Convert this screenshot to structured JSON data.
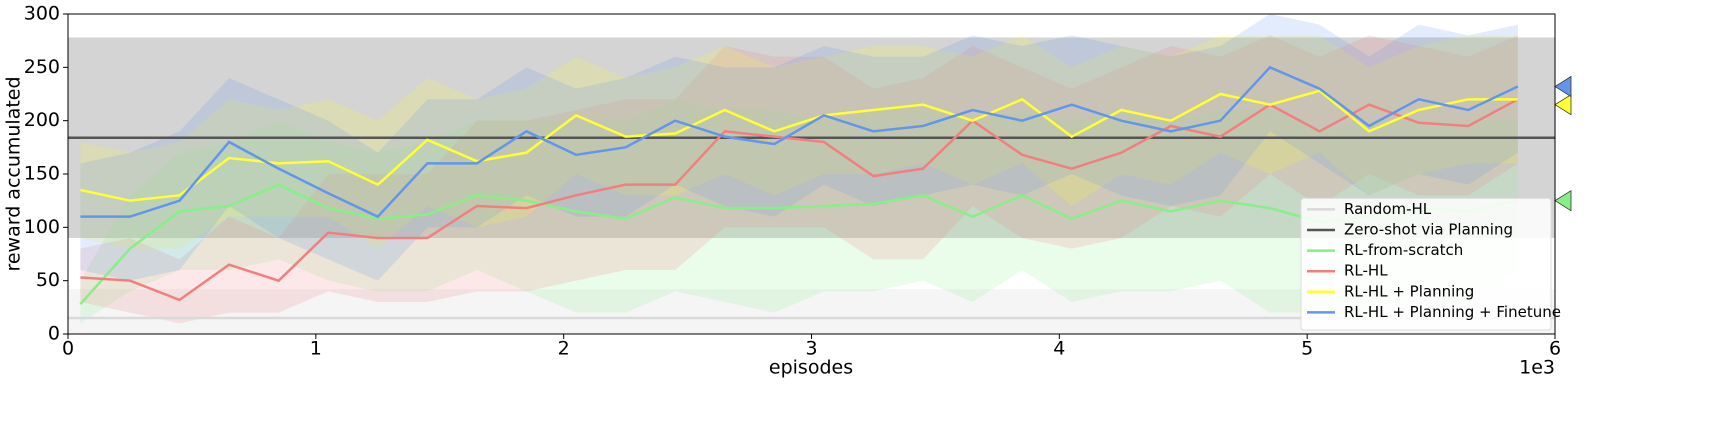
{
  "chart_data": {
    "type": "line",
    "xlabel": "episodes",
    "ylabel": "reward accumulated",
    "x_offset_label": "1e3",
    "xlim": [
      0,
      6
    ],
    "xticks": [
      0,
      1,
      2,
      3,
      4,
      5,
      6
    ],
    "ylim": [
      0,
      300
    ],
    "yticks": [
      0,
      50,
      100,
      150,
      200,
      250,
      300
    ],
    "legend": "lower right",
    "x": [
      0.05,
      0.25,
      0.45,
      0.65,
      0.85,
      1.05,
      1.25,
      1.45,
      1.65,
      1.85,
      2.05,
      2.25,
      2.45,
      2.65,
      2.85,
      3.05,
      3.25,
      3.45,
      3.65,
      3.85,
      4.05,
      4.25,
      4.45,
      4.65,
      4.85,
      5.05,
      5.25,
      5.45,
      5.65,
      5.85
    ],
    "reference_lines": [
      {
        "name": "Random-HL",
        "color": "#d9d9d9",
        "value": 15,
        "lower": 0,
        "upper": 42
      },
      {
        "name": "Zero-shot via Planning",
        "color": "#555555",
        "value": 184,
        "lower": 90,
        "upper": 278
      }
    ],
    "series": [
      {
        "name": "RL-from-scratch",
        "color": "#88ee88",
        "marker": 125,
        "values": [
          28,
          80,
          115,
          120,
          140,
          118,
          108,
          112,
          130,
          125,
          115,
          108,
          128,
          118,
          118,
          120,
          122,
          130,
          110,
          130,
          108,
          125,
          115,
          125,
          118,
          105,
          110,
          118,
          115,
          125
        ],
        "lower": [
          10,
          40,
          60,
          60,
          70,
          50,
          40,
          40,
          60,
          40,
          20,
          20,
          40,
          30,
          20,
          40,
          40,
          50,
          30,
          60,
          30,
          40,
          40,
          50,
          20,
          20,
          20,
          40,
          30,
          60
        ],
        "upper": [
          50,
          130,
          170,
          180,
          200,
          180,
          170,
          180,
          200,
          200,
          200,
          200,
          220,
          210,
          210,
          200,
          210,
          210,
          200,
          210,
          200,
          210,
          200,
          210,
          210,
          190,
          200,
          200,
          200,
          200
        ]
      },
      {
        "name": "RL-HL",
        "color": "#f08080",
        "values": [
          53,
          50,
          32,
          65,
          50,
          95,
          90,
          90,
          120,
          118,
          130,
          140,
          140,
          190,
          185,
          180,
          148,
          155,
          200,
          168,
          155,
          170,
          195,
          185,
          215,
          190,
          215,
          198,
          195,
          220
        ],
        "lower": [
          30,
          20,
          10,
          20,
          20,
          40,
          30,
          30,
          40,
          40,
          50,
          60,
          60,
          100,
          100,
          100,
          70,
          70,
          120,
          90,
          80,
          90,
          120,
          110,
          150,
          120,
          150,
          130,
          130,
          160
        ],
        "upper": [
          80,
          90,
          70,
          110,
          90,
          150,
          150,
          150,
          200,
          200,
          210,
          220,
          220,
          270,
          260,
          260,
          230,
          240,
          270,
          250,
          230,
          250,
          270,
          260,
          280,
          260,
          280,
          270,
          260,
          280
        ]
      },
      {
        "name": "RL-HL + Planning",
        "color": "#ffff33",
        "marker": 215,
        "values": [
          135,
          125,
          130,
          165,
          160,
          162,
          140,
          182,
          162,
          170,
          205,
          185,
          188,
          210,
          190,
          205,
          210,
          215,
          200,
          220,
          185,
          210,
          200,
          225,
          215,
          228,
          190,
          210,
          220,
          220
        ],
        "lower": [
          90,
          80,
          80,
          110,
          110,
          110,
          80,
          120,
          100,
          110,
          150,
          130,
          130,
          150,
          130,
          150,
          150,
          160,
          140,
          160,
          120,
          150,
          140,
          170,
          150,
          170,
          130,
          150,
          160,
          160
        ],
        "upper": [
          180,
          170,
          180,
          220,
          210,
          220,
          200,
          240,
          220,
          230,
          260,
          240,
          250,
          270,
          250,
          260,
          270,
          270,
          260,
          280,
          250,
          270,
          260,
          280,
          280,
          280,
          250,
          270,
          280,
          280
        ]
      },
      {
        "name": "RL-HL + Planning + Finetune",
        "color": "#6495ed",
        "marker": 232,
        "values": [
          110,
          110,
          125,
          180,
          155,
          132,
          110,
          160,
          160,
          190,
          168,
          175,
          200,
          185,
          178,
          205,
          190,
          195,
          210,
          200,
          215,
          200,
          190,
          200,
          250,
          230,
          195,
          220,
          210,
          232
        ],
        "lower": [
          60,
          50,
          60,
          120,
          90,
          70,
          50,
          100,
          100,
          130,
          110,
          110,
          140,
          120,
          110,
          140,
          120,
          130,
          140,
          130,
          150,
          130,
          120,
          130,
          190,
          160,
          130,
          150,
          140,
          170
        ],
        "upper": [
          160,
          170,
          190,
          240,
          220,
          200,
          170,
          220,
          220,
          250,
          230,
          240,
          260,
          250,
          250,
          270,
          260,
          260,
          280,
          270,
          280,
          270,
          260,
          270,
          300,
          290,
          260,
          290,
          280,
          290
        ]
      }
    ]
  }
}
